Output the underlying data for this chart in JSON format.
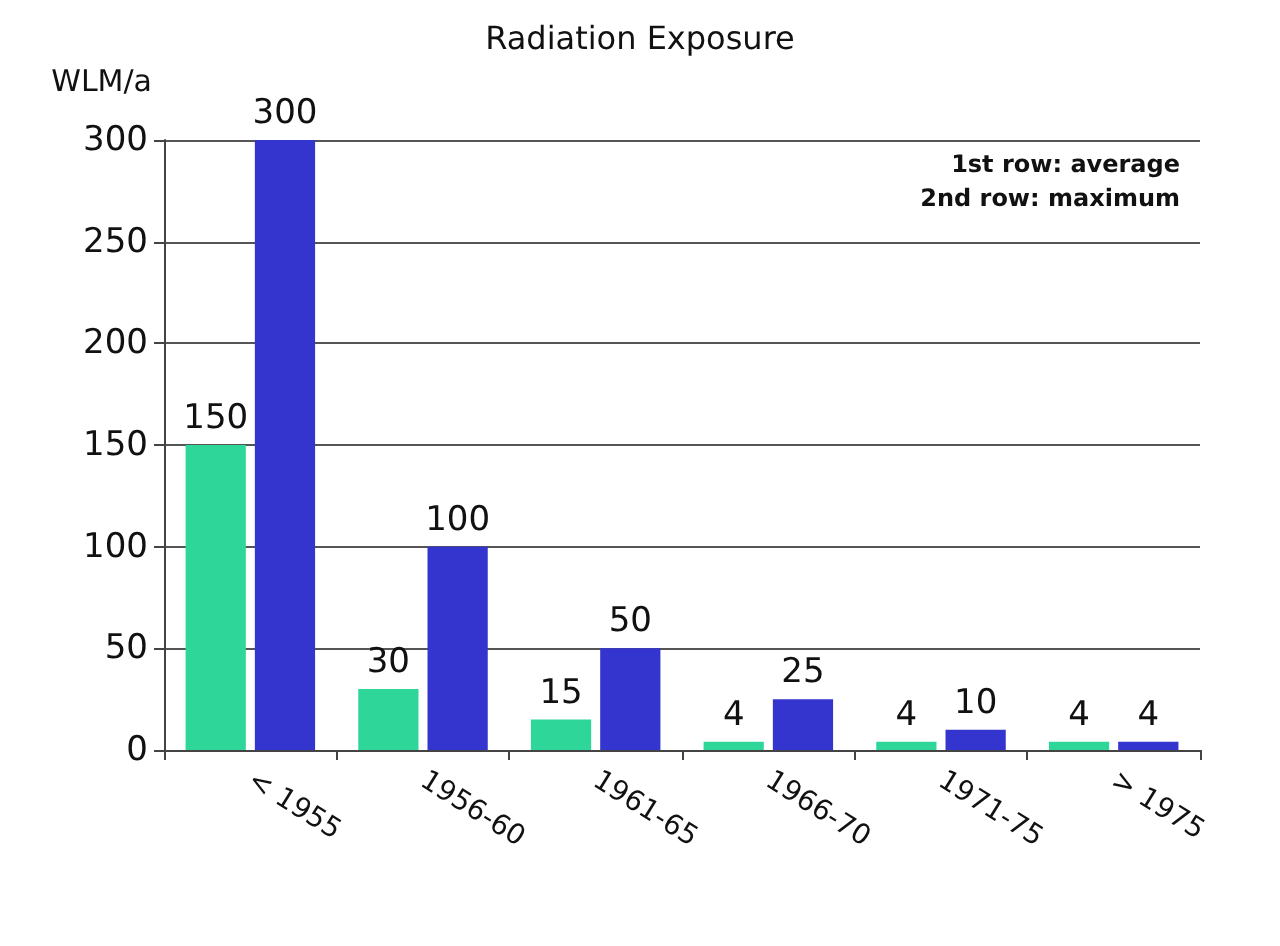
{
  "chart_data": {
    "type": "bar",
    "title": "Radiation Exposure",
    "ylabel": "WLM/a",
    "categories": [
      "< 1955",
      "1956-60",
      "1961-65",
      "1966-70",
      "1971-75",
      "> 1975"
    ],
    "series": [
      {
        "color": "#2fd69a",
        "values": [
          150,
          30,
          15,
          4,
          4,
          4
        ]
      },
      {
        "color": "#3434cf",
        "values": [
          300,
          100,
          50,
          25,
          10,
          4
        ]
      }
    ],
    "ylim": [
      0,
      300
    ],
    "yticks": [
      0,
      50,
      100,
      150,
      200,
      250,
      300
    ],
    "grid": "y",
    "data_labels": true,
    "annotations": [
      "1st row: average",
      "2nd row: maximum"
    ]
  }
}
